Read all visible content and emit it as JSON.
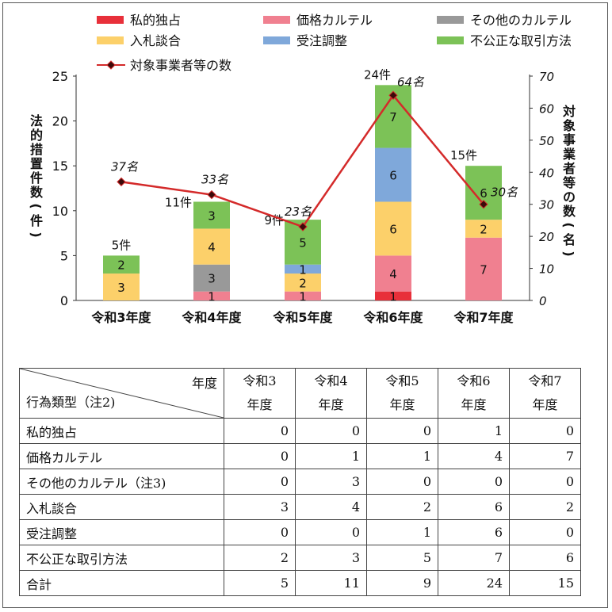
{
  "chart_data": {
    "type": "bar",
    "categories": [
      "令和3年度",
      "令和4年度",
      "令和5年度",
      "令和6年度",
      "令和7年度"
    ],
    "series": [
      {
        "name": "私的独占",
        "values": [
          0,
          0,
          0,
          1,
          0
        ],
        "color": "#e8303a"
      },
      {
        "name": "価格カルテル",
        "values": [
          0,
          1,
          1,
          4,
          7
        ],
        "color": "#f08090"
      },
      {
        "name": "その他のカルテル",
        "values": [
          0,
          3,
          0,
          0,
          0
        ],
        "color": "#999999"
      },
      {
        "name": "入札談合",
        "values": [
          3,
          4,
          2,
          6,
          2
        ],
        "color": "#fcd06a"
      },
      {
        "name": "受注調整",
        "values": [
          0,
          0,
          1,
          6,
          0
        ],
        "color": "#7fa8da"
      },
      {
        "name": "不公正な取引方法",
        "values": [
          2,
          3,
          5,
          7,
          6
        ],
        "color": "#7cc257"
      }
    ],
    "totals": [
      5,
      11,
      9,
      24,
      15
    ],
    "total_labels": [
      "5件",
      "11件",
      "9件",
      "24件",
      "15件"
    ],
    "line_series": {
      "name": "対象事業者等の数",
      "values": [
        37,
        33,
        23,
        64,
        30
      ],
      "labels": [
        "37名",
        "33名",
        "23名",
        "64名",
        "30名"
      ],
      "color": "#d42a2a"
    },
    "ylabel": "法的措置件数(件)",
    "y2label": "対象事業者等の数(名)",
    "ylim": [
      0,
      25
    ],
    "y2lim": [
      0,
      70
    ],
    "yticks": [
      "0",
      "5",
      "10",
      "15",
      "20",
      "25"
    ],
    "y2ticks": [
      "0",
      "10",
      "20",
      "30",
      "40",
      "50",
      "60",
      "70"
    ],
    "legend_position": "top",
    "grid": false
  },
  "table": {
    "corner_year": "年度",
    "corner_type": "行為類型（注2)",
    "year_headers": [
      [
        "令和3",
        "年度"
      ],
      [
        "令和4",
        "年度"
      ],
      [
        "令和5",
        "年度"
      ],
      [
        "令和6",
        "年度"
      ],
      [
        "令和7",
        "年度"
      ]
    ],
    "rows": [
      {
        "label": "私的独占",
        "values": [
          "0",
          "0",
          "0",
          "1",
          "0"
        ]
      },
      {
        "label": "価格カルテル",
        "values": [
          "0",
          "1",
          "1",
          "4",
          "7"
        ]
      },
      {
        "label": "その他のカルテル（注3)",
        "values": [
          "0",
          "3",
          "0",
          "0",
          "0"
        ]
      },
      {
        "label": "入札談合",
        "values": [
          "3",
          "4",
          "2",
          "6",
          "2"
        ]
      },
      {
        "label": "受注調整",
        "values": [
          "0",
          "0",
          "1",
          "6",
          "0"
        ]
      },
      {
        "label": "不公正な取引方法",
        "values": [
          "2",
          "3",
          "5",
          "7",
          "6"
        ]
      },
      {
        "label": "合計",
        "values": [
          "5",
          "11",
          "9",
          "24",
          "15"
        ]
      }
    ]
  }
}
